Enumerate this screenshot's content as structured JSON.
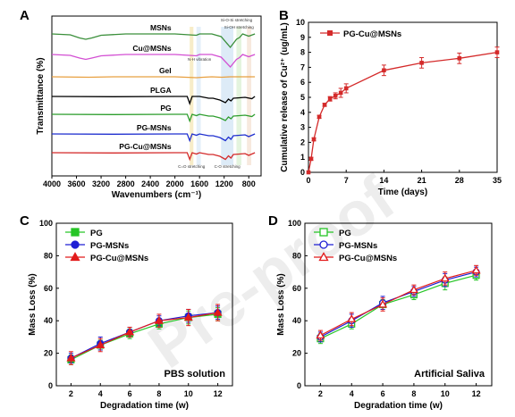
{
  "watermark": "Pre-proof",
  "chart_data": [
    {
      "panel": "A",
      "type": "line",
      "xlabel": "Wavenumbers (cm⁻¹)",
      "ylabel": "Transmittance (%)",
      "xlim": [
        4000,
        600
      ],
      "x_ticks": [
        4000,
        3600,
        3200,
        2800,
        2400,
        2000,
        1600,
        1200,
        800
      ],
      "series_order_top_to_bottom": [
        "MSNs",
        "Cu@MSNs",
        "Gel",
        "PLGA",
        "PG",
        "PG-MSNs",
        "PG-Cu@MSNs"
      ],
      "series": [
        {
          "name": "MSNs",
          "color": "#3a8f3a",
          "x": [
            4000,
            3700,
            3550,
            3450,
            3350,
            3200,
            2800,
            2000,
            1650,
            1600,
            1400,
            1250,
            1100,
            1000,
            950,
            900,
            800,
            700
          ],
          "y": [
            0.0,
            -0.2,
            -0.9,
            -1.2,
            -0.9,
            -0.3,
            0.0,
            0.0,
            -0.3,
            0.0,
            0.0,
            -0.6,
            -3.0,
            -1.2,
            -0.8,
            0.0,
            -0.5,
            0.0
          ]
        },
        {
          "name": "Cu@MSNs",
          "color": "#d34fd3",
          "x": [
            4000,
            3700,
            3550,
            3450,
            3350,
            3200,
            2800,
            2000,
            1650,
            1600,
            1400,
            1250,
            1100,
            1000,
            950,
            900,
            800,
            700
          ],
          "y": [
            0.0,
            -0.2,
            -0.8,
            -1.1,
            -0.8,
            -0.3,
            0.0,
            0.0,
            -0.3,
            0.0,
            0.0,
            -0.6,
            -2.8,
            -1.1,
            -0.7,
            0.0,
            -0.5,
            0.0
          ]
        },
        {
          "name": "Gel",
          "color": "#e8a040",
          "x": [
            4000,
            3400,
            3000,
            2000,
            1650,
            1540,
            1400,
            1240,
            1100,
            900,
            700
          ],
          "y": [
            0.0,
            -0.1,
            0.0,
            0.0,
            -0.2,
            -0.1,
            0.0,
            -0.1,
            0.0,
            0.0,
            0.0
          ]
        },
        {
          "name": "PLGA",
          "color": "#000000",
          "x": [
            4000,
            3000,
            2000,
            1800,
            1760,
            1720,
            1600,
            1450,
            1380,
            1270,
            1180,
            1130,
            1090,
            1050,
            950,
            860,
            750,
            700
          ],
          "y": [
            0.0,
            -0.05,
            0.0,
            0.0,
            -1.6,
            0.0,
            0.0,
            -0.4,
            -0.4,
            -0.8,
            -1.4,
            -0.6,
            -1.0,
            -0.4,
            -0.3,
            -0.2,
            -0.5,
            0.0
          ]
        },
        {
          "name": "PG",
          "color": "#2e9e2e",
          "x": [
            4000,
            3000,
            2000,
            1800,
            1760,
            1720,
            1650,
            1600,
            1450,
            1380,
            1270,
            1180,
            1130,
            1090,
            1050,
            950,
            860,
            750,
            700
          ],
          "y": [
            0.0,
            -0.05,
            0.0,
            0.0,
            -1.5,
            0.0,
            -0.3,
            0.0,
            -0.4,
            -0.4,
            -0.8,
            -1.4,
            -0.6,
            -1.0,
            -0.4,
            -0.3,
            -0.2,
            -0.5,
            0.0
          ]
        },
        {
          "name": "PG-MSNs",
          "color": "#1f2fcf",
          "x": [
            4000,
            3000,
            2000,
            1800,
            1760,
            1720,
            1650,
            1600,
            1450,
            1380,
            1270,
            1180,
            1130,
            1090,
            1050,
            950,
            860,
            800,
            700
          ],
          "y": [
            0.0,
            -0.05,
            0.0,
            0.0,
            -1.5,
            0.0,
            -0.3,
            0.0,
            -0.4,
            -0.4,
            -0.8,
            -1.5,
            -0.7,
            -1.2,
            -0.4,
            -0.3,
            -0.2,
            -0.6,
            0.0
          ]
        },
        {
          "name": "PG-Cu@MSNs",
          "color": "#d42a2a",
          "x": [
            4000,
            3000,
            2000,
            1800,
            1760,
            1720,
            1650,
            1600,
            1450,
            1380,
            1270,
            1180,
            1130,
            1090,
            1050,
            950,
            860,
            800,
            700
          ],
          "y": [
            0.0,
            -0.05,
            0.0,
            0.0,
            -1.5,
            0.0,
            -0.3,
            0.0,
            -0.4,
            -0.4,
            -0.8,
            -1.5,
            -0.7,
            -1.2,
            -0.4,
            -0.3,
            -0.2,
            -0.6,
            0.0
          ]
        }
      ],
      "annotations": [
        "Si-O-Si stretching",
        "Si-OH stretching",
        "N-H vibration",
        "C=O stretching",
        "C-O stretching"
      ],
      "highlight_bands_cm": [
        [
          1760,
          1700,
          "#f3e4b0"
        ],
        [
          1650,
          1580,
          "#d8e8f6"
        ],
        [
          1250,
          1050,
          "#cfe3f3"
        ],
        [
          1000,
          920,
          "#d8f0d0"
        ],
        [
          830,
          760,
          "#f3e0d0"
        ]
      ]
    },
    {
      "panel": "B",
      "type": "line",
      "xlabel": "Time (days)",
      "ylabel": "Cumulative release of Cu²⁺ (ug/mL)",
      "xlim": [
        0,
        35
      ],
      "ylim": [
        0,
        10
      ],
      "x_ticks": [
        0,
        7,
        14,
        21,
        28,
        35
      ],
      "y_ticks": [
        0,
        1,
        2,
        3,
        4,
        5,
        6,
        7,
        8,
        9,
        10
      ],
      "series": [
        {
          "name": "PG-Cu@MSNs",
          "color": "#d42a2a",
          "x": [
            0,
            0.5,
            1,
            2,
            3,
            4,
            5,
            6,
            7,
            14,
            21,
            28,
            35
          ],
          "y": [
            0,
            0.9,
            2.2,
            3.7,
            4.5,
            4.9,
            5.1,
            5.3,
            5.6,
            6.8,
            7.3,
            7.6,
            8.0
          ],
          "err": [
            0,
            0.1,
            0.1,
            0.1,
            0.1,
            0.15,
            0.2,
            0.3,
            0.3,
            0.35,
            0.35,
            0.35,
            0.35
          ]
        }
      ]
    },
    {
      "panel": "C",
      "type": "line",
      "xlabel": "Degradation time (w)",
      "ylabel": "Mass Loss (%)",
      "xlim": [
        1,
        13
      ],
      "ylim": [
        0,
        100
      ],
      "x_ticks": [
        2,
        4,
        6,
        8,
        10,
        12
      ],
      "y_ticks": [
        0,
        20,
        40,
        60,
        80,
        100
      ],
      "annotation": "PBS solution",
      "categories": [
        2,
        4,
        6,
        8,
        10,
        12
      ],
      "series": [
        {
          "name": "PG",
          "color": "#27c527",
          "marker": "square",
          "values": [
            16,
            25,
            32,
            38,
            42,
            44
          ],
          "err": [
            3,
            3,
            3,
            3,
            4,
            4
          ]
        },
        {
          "name": "PG-MSNs",
          "color": "#1f1fd4",
          "marker": "circle",
          "values": [
            17,
            26,
            33,
            40,
            43,
            45
          ],
          "err": [
            3,
            4,
            3,
            3,
            4,
            4
          ]
        },
        {
          "name": "PG-Cu@MSNs",
          "color": "#e21b1b",
          "marker": "triangle",
          "values": [
            17,
            25,
            33,
            40,
            42,
            45
          ],
          "err": [
            4,
            4,
            3,
            4,
            5,
            5
          ]
        }
      ]
    },
    {
      "panel": "D",
      "type": "line",
      "xlabel": "Degradation time (w)",
      "ylabel": "Mass Loss (%)",
      "xlim": [
        1,
        13
      ],
      "ylim": [
        0,
        100
      ],
      "x_ticks": [
        2,
        4,
        6,
        8,
        10,
        12
      ],
      "y_ticks": [
        0,
        20,
        40,
        60,
        80,
        100
      ],
      "annotation": "Artificial Saliva",
      "categories": [
        2,
        4,
        6,
        8,
        10,
        12
      ],
      "series": [
        {
          "name": "PG",
          "color": "#27c527",
          "marker": "open-square",
          "values": [
            29,
            38,
            50,
            56,
            63,
            68
          ],
          "err": [
            3,
            3,
            3,
            3,
            4,
            3
          ]
        },
        {
          "name": "PG-MSNs",
          "color": "#1f1fd4",
          "marker": "open-circle",
          "values": [
            30,
            40,
            51,
            58,
            65,
            70
          ],
          "err": [
            3,
            4,
            4,
            3,
            4,
            3
          ]
        },
        {
          "name": "PG-Cu@MSNs",
          "color": "#e21b1b",
          "marker": "open-triangle",
          "values": [
            31,
            41,
            50,
            59,
            66,
            71
          ],
          "err": [
            3,
            4,
            4,
            3,
            4,
            3
          ]
        }
      ]
    }
  ]
}
